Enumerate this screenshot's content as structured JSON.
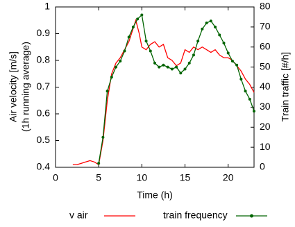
{
  "chart_data": {
    "type": "line",
    "xlabel": "Time (h)",
    "ylabel": [
      "Air velocity [m/s]",
      "(1h running average)"
    ],
    "y2label": "Train traffic [#/h]",
    "xlim": [
      0,
      23
    ],
    "xticks": [
      0,
      5,
      10,
      15,
      20
    ],
    "ylim": [
      0.4,
      1
    ],
    "yticks": [
      0.4,
      0.5,
      0.6,
      0.7,
      0.8,
      0.9,
      1
    ],
    "y2lim": [
      0,
      80
    ],
    "y2ticks": [
      0,
      10,
      20,
      30,
      40,
      50,
      60,
      70,
      80
    ],
    "series": [
      {
        "name": "v air",
        "color": "#ff0000",
        "x": [
          2,
          2.5,
          3,
          3.5,
          4,
          4.5,
          5,
          5.5,
          6,
          6.5,
          7,
          7.5,
          8,
          8.5,
          9,
          9.3,
          9.7,
          10,
          10.5,
          11,
          11.5,
          12,
          12.5,
          13,
          13.5,
          14,
          14.5,
          15,
          15.5,
          16,
          16.5,
          17,
          17.5,
          18,
          18.5,
          19,
          19.5,
          20,
          20.5,
          21,
          21.5,
          22,
          22.5,
          23
        ],
        "values": [
          0.41,
          0.41,
          0.415,
          0.42,
          0.425,
          0.42,
          0.41,
          0.5,
          0.65,
          0.75,
          0.79,
          0.81,
          0.84,
          0.87,
          0.92,
          0.95,
          0.9,
          0.85,
          0.84,
          0.86,
          0.87,
          0.85,
          0.86,
          0.81,
          0.8,
          0.78,
          0.79,
          0.84,
          0.83,
          0.85,
          0.84,
          0.85,
          0.84,
          0.83,
          0.84,
          0.82,
          0.81,
          0.81,
          0.8,
          0.78,
          0.76,
          0.73,
          0.71,
          0.68
        ]
      },
      {
        "name": "train frequency",
        "color": "#006400",
        "axis": "y2",
        "markers": true,
        "x": [
          5,
          5.5,
          6,
          6.5,
          7,
          7.5,
          8,
          8.5,
          9,
          9.5,
          10,
          10.5,
          11,
          11.5,
          12,
          12.5,
          13,
          13.5,
          14,
          14.5,
          15,
          15.5,
          16,
          16.5,
          17,
          17.5,
          18,
          18.5,
          19,
          19.5,
          20,
          20.5,
          21,
          21.5,
          22,
          22.5,
          23
        ],
        "values": [
          2,
          15,
          38,
          45,
          50,
          53,
          58,
          65,
          70,
          74,
          76,
          63,
          58,
          52,
          50,
          51,
          50,
          49,
          50,
          47,
          49,
          52,
          56,
          63,
          69,
          72,
          73,
          70,
          66,
          62,
          57,
          53,
          51,
          44,
          38,
          34,
          28
        ]
      }
    ]
  }
}
